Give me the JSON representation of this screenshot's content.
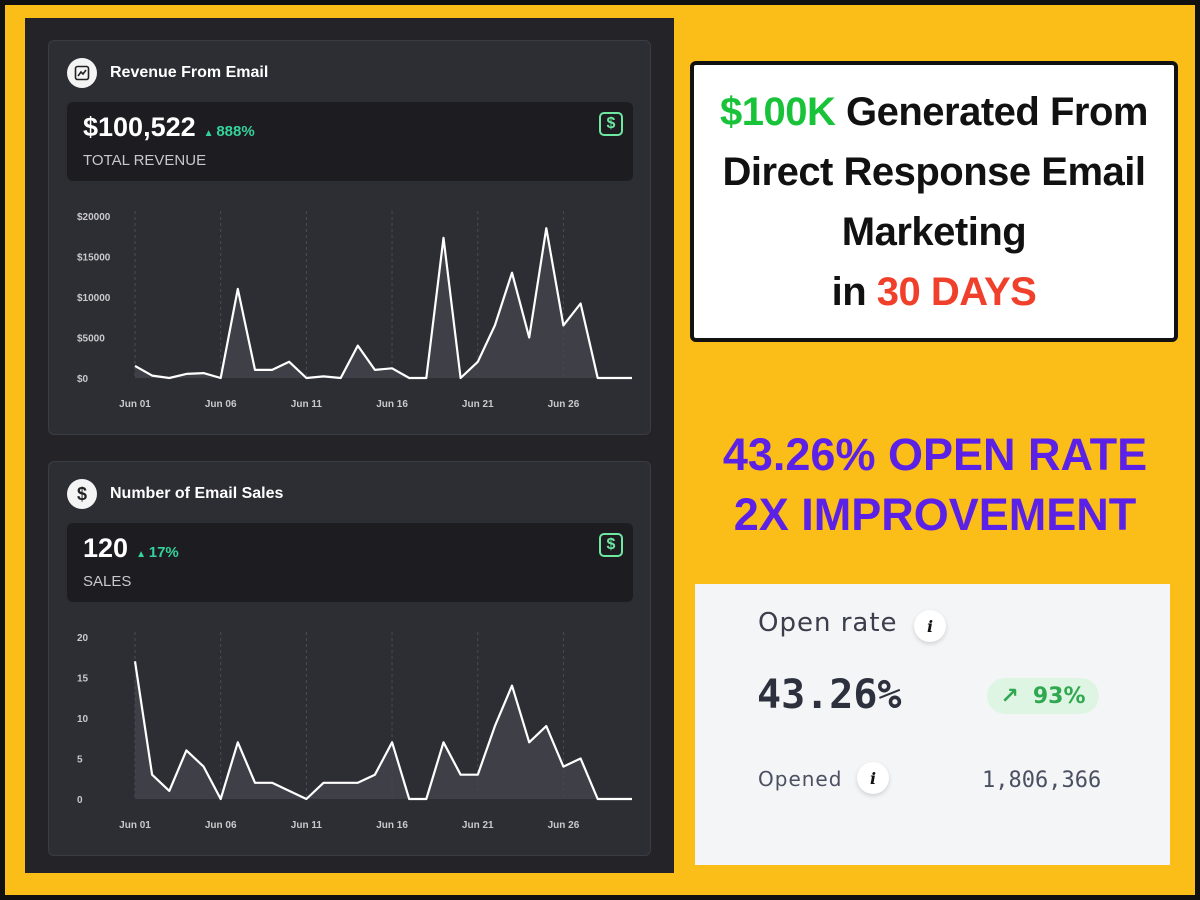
{
  "revenue_card": {
    "title": "Revenue From Email",
    "icon": "chart-line-icon",
    "value": "$100,522",
    "change": "888%",
    "label": "TOTAL REVENUE",
    "badge_icon": "dollar-badge-icon"
  },
  "sales_card": {
    "title": "Number of Email Sales",
    "icon": "dollar-circle-icon",
    "value": "120",
    "change": "17%",
    "label": "SALES",
    "badge_icon": "dollar-badge-icon"
  },
  "headline": {
    "line1_green": "$100K",
    "line1_rest": " Generated From",
    "line2": "Direct Response Email",
    "line3": "Marketing",
    "line4_prefix": "in ",
    "line4_red": "30 DAYS"
  },
  "open_rate_banner": {
    "line1": "43.26% OPEN RATE",
    "line2": "2X IMPROVEMENT"
  },
  "metric_card": {
    "title": "Open rate",
    "value": "43.26%",
    "change": "93%",
    "opened_label": "Opened",
    "opened_value": "1,806,366",
    "info_glyph": "i"
  },
  "colors": {
    "accent_green": "#34d399",
    "headline_green": "#18c33a",
    "headline_red": "#f0402b",
    "banner_purple": "#5b21e6",
    "background_yellow": "#fbbd18"
  },
  "chart_data": [
    {
      "type": "area",
      "title": "Revenue From Email",
      "x": [
        "Jun 01",
        "Jun 02",
        "Jun 03",
        "Jun 04",
        "Jun 05",
        "Jun 06",
        "Jun 07",
        "Jun 08",
        "Jun 09",
        "Jun 10",
        "Jun 11",
        "Jun 12",
        "Jun 13",
        "Jun 14",
        "Jun 15",
        "Jun 16",
        "Jun 17",
        "Jun 18",
        "Jun 19",
        "Jun 20",
        "Jun 21",
        "Jun 22",
        "Jun 23",
        "Jun 24",
        "Jun 25",
        "Jun 26",
        "Jun 27",
        "Jun 28",
        "Jun 29",
        "Jun 30"
      ],
      "xticks": [
        "Jun 01",
        "Jun 06",
        "Jun 11",
        "Jun 16",
        "Jun 21",
        "Jun 26"
      ],
      "yticks": [
        "$0",
        "$5000",
        "$10000",
        "$15000",
        "$20000"
      ],
      "ylim": [
        0,
        20000
      ],
      "series": [
        {
          "name": "Revenue",
          "values": [
            1500,
            300,
            0,
            500,
            600,
            0,
            11000,
            1000,
            1000,
            2000,
            0,
            200,
            0,
            4000,
            1000,
            1200,
            0,
            0,
            17300,
            0,
            2000,
            6500,
            13000,
            5000,
            18500,
            6500,
            9200,
            0,
            0,
            0
          ]
        }
      ]
    },
    {
      "type": "area",
      "title": "Number of Email Sales",
      "x": [
        "Jun 01",
        "Jun 02",
        "Jun 03",
        "Jun 04",
        "Jun 05",
        "Jun 06",
        "Jun 07",
        "Jun 08",
        "Jun 09",
        "Jun 10",
        "Jun 11",
        "Jun 12",
        "Jun 13",
        "Jun 14",
        "Jun 15",
        "Jun 16",
        "Jun 17",
        "Jun 18",
        "Jun 19",
        "Jun 20",
        "Jun 21",
        "Jun 22",
        "Jun 23",
        "Jun 24",
        "Jun 25",
        "Jun 26",
        "Jun 27",
        "Jun 28",
        "Jun 29",
        "Jun 30"
      ],
      "xticks": [
        "Jun 01",
        "Jun 06",
        "Jun 11",
        "Jun 16",
        "Jun 21",
        "Jun 26"
      ],
      "yticks": [
        "0",
        "5",
        "10",
        "15",
        "20"
      ],
      "ylim": [
        0,
        20
      ],
      "series": [
        {
          "name": "Sales",
          "values": [
            17,
            3,
            1,
            6,
            4,
            0,
            7,
            2,
            2,
            1,
            0,
            2,
            2,
            2,
            3,
            7,
            0,
            0,
            7,
            3,
            3,
            9,
            14,
            7,
            9,
            4,
            5,
            0,
            0,
            0
          ]
        }
      ]
    }
  ]
}
